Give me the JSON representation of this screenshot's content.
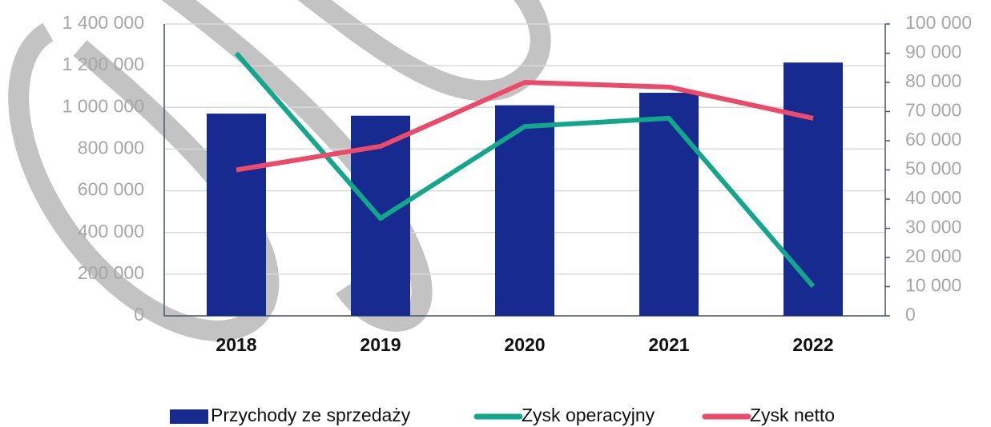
{
  "chart_data": {
    "type": "combo",
    "categories": [
      "2018",
      "2019",
      "2020",
      "2021",
      "2022"
    ],
    "series": [
      {
        "name": "Przychody ze sprzedaży",
        "type": "bar",
        "color": "#172a8f",
        "values": [
          970000,
          960000,
          1010000,
          1070000,
          1215000
        ]
      },
      {
        "name": "Zysk operacyjny",
        "type": "line",
        "axis": "y2",
        "color": "#12a68a",
        "values": [
          90000,
          33400,
          64900,
          67700,
          10100
        ]
      },
      {
        "name": "Zysk netto",
        "type": "line",
        "axis": "y2",
        "color": "#ec4a6a",
        "values": [
          50000,
          58100,
          80000,
          78400,
          67700
        ]
      }
    ],
    "ylim": [
      0,
      1400000
    ],
    "yticks": [
      0,
      {
        "value": 200000,
        "label": "200 000"
      },
      {
        "value": 400000,
        "label": "400 000"
      },
      {
        "value": 600000,
        "label": "600 000"
      },
      {
        "value": 800000,
        "label": "800 000"
      },
      {
        "value": 1000000,
        "label": "1 000 000"
      },
      {
        "value": 1200000,
        "label": "1 200 000"
      },
      {
        "value": 1400000,
        "label": "1 400 000"
      }
    ],
    "y2lim": [
      0,
      100000
    ],
    "y2ticks": [
      0,
      {
        "value": 10000,
        "label": "10 000"
      },
      {
        "value": 20000,
        "label": "20 000"
      },
      {
        "value": 30000,
        "label": "30 000"
      },
      {
        "value": 40000,
        "label": "40 000"
      },
      {
        "value": 50000,
        "label": "50 000"
      },
      {
        "value": 60000,
        "label": "60 000"
      },
      {
        "value": 70000,
        "label": "70 000"
      },
      {
        "value": 80000,
        "label": "80 000"
      },
      {
        "value": 90000,
        "label": "90 000"
      },
      {
        "value": 100000,
        "label": "100 000"
      }
    ],
    "grid": true,
    "legend": "bottom"
  }
}
